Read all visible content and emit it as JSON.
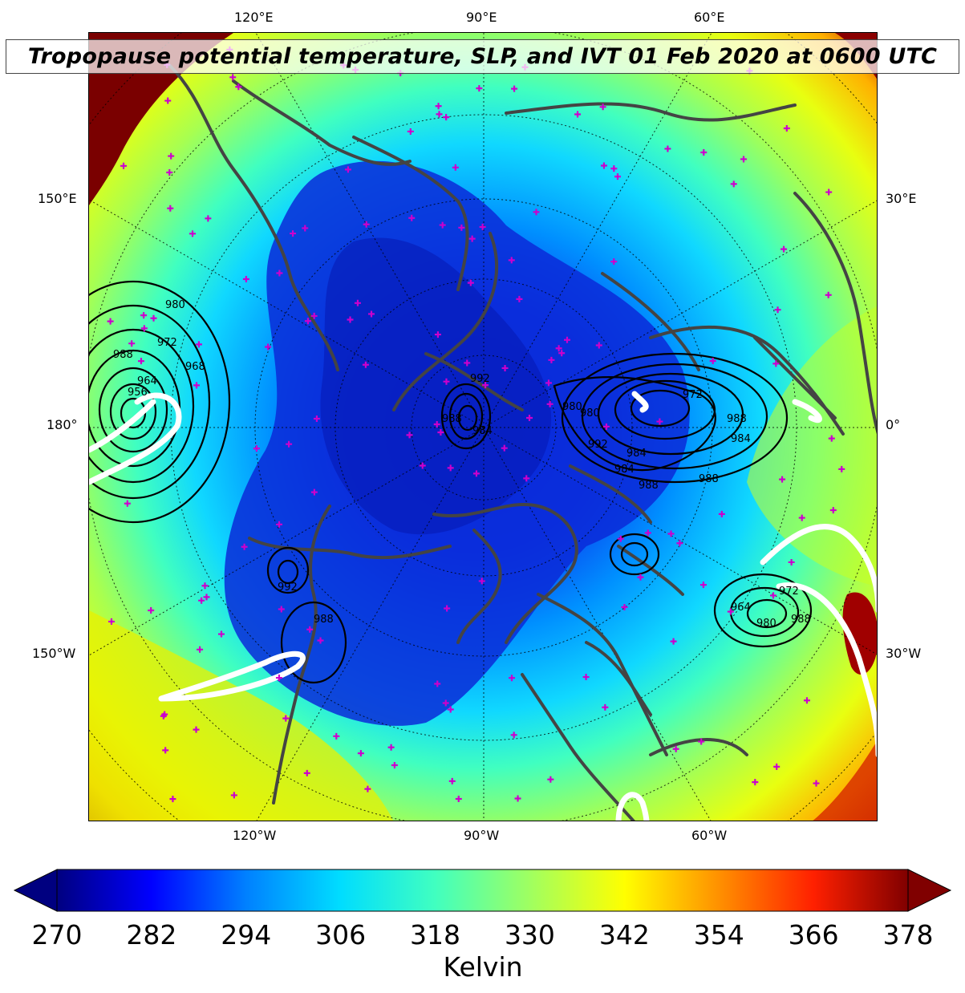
{
  "title": "Tropopause potential temperature, SLP, and IVT 01 Feb 2020 at 0600 UTC",
  "longitude_labels": {
    "top": [
      "120°E",
      "90°E",
      "60°E"
    ],
    "bottom": [
      "120°W",
      "90°W",
      "60°W"
    ],
    "left": [
      "150°E",
      "180°",
      "150°W"
    ],
    "right": [
      "30°E",
      "0°",
      "30°W"
    ]
  },
  "slp_contour_labels": [
    "980",
    "972",
    "988",
    "964",
    "956",
    "968",
    "992",
    "988",
    "984",
    "980",
    "992",
    "984",
    "988",
    "972",
    "984",
    "980",
    "988",
    "988",
    "992",
    "988",
    "984",
    "964",
    "980",
    "972",
    "988"
  ],
  "colors": {
    "cmap": [
      "#000080",
      "#0000ff",
      "#0080ff",
      "#00ddff",
      "#40ffc0",
      "#a0ff60",
      "#ffff00",
      "#ff9000",
      "#ff2000",
      "#800000"
    ],
    "coastline": "#444444",
    "station_marker": "#cc00cc",
    "slp_contour": "#000000",
    "ivt_contour": "#ffffff"
  },
  "colorbar": {
    "min": 270,
    "max": 378,
    "ticks": [
      "270",
      "282",
      "294",
      "306",
      "318",
      "330",
      "342",
      "354",
      "366",
      "378"
    ],
    "label": "Kelvin",
    "extend": "both"
  }
}
